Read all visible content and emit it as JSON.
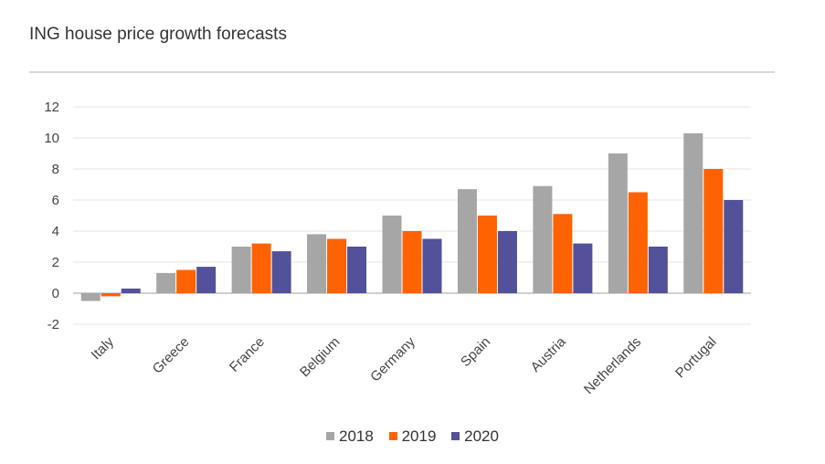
{
  "title": "ING house price growth forecasts",
  "colors": {
    "2018": "#a6a6a6",
    "2019": "#ff6200",
    "2020": "#525199"
  },
  "chart_data": {
    "type": "bar",
    "title": "ING house price growth forecasts",
    "categories": [
      "Italy",
      "Greece",
      "France",
      "Belgium",
      "Germany",
      "Spain",
      "Austria",
      "Netherlands",
      "Portugal"
    ],
    "series": [
      {
        "name": "2018",
        "values": [
          -0.5,
          1.3,
          3.0,
          3.8,
          5.0,
          6.7,
          6.9,
          9.0,
          10.3
        ]
      },
      {
        "name": "2019",
        "values": [
          -0.2,
          1.5,
          3.2,
          3.5,
          4.0,
          5.0,
          5.1,
          6.5,
          8.0
        ]
      },
      {
        "name": "2020",
        "values": [
          0.3,
          1.7,
          2.7,
          3.0,
          3.5,
          4.0,
          3.2,
          3.0,
          6.0
        ]
      }
    ],
    "ylim": [
      -2,
      12
    ],
    "yticks": [
      -2,
      0,
      2,
      4,
      6,
      8,
      10,
      12
    ],
    "grid": true,
    "legend_position": "bottom-center"
  }
}
